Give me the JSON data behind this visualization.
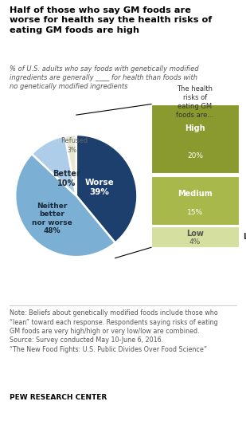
{
  "title": "Half of those who say GM foods are\nworse for health say the health risks of\neating GM foods are high",
  "subtitle": "% of U.S. adults who say foods with genetically modified\ningredients are generally ____ for health than foods with\nno genetically modified ingredients",
  "pie_values": [
    39,
    48,
    10,
    3
  ],
  "pie_colors": [
    "#1c3f6e",
    "#7bafd4",
    "#aecde8",
    "#e8e8d0"
  ],
  "bar_labels": [
    "High",
    "Medium",
    "Low"
  ],
  "bar_values": [
    20,
    15,
    4
  ],
  "bar_colors": [
    "#8b9a2e",
    "#a8b84a",
    "#d4dfa0"
  ],
  "bar_header": "The health\nrisks of\neating GM\nfoods are...",
  "note": "Note: Beliefs about genetically modified foods include those who\n“lean” toward each response. Respondents saying risks of eating\nGM foods are very high/high or very low/low are combined.\nSource: Survey conducted May 10-June 6, 2016.\n“The New Food Fights: U.S. Public Divides Over Food Science”",
  "footer": "PEW RESEARCH CENTER",
  "bg_color": "#ffffff",
  "note_color": "#555555",
  "title_color": "#000000",
  "subtitle_color": "#555555"
}
